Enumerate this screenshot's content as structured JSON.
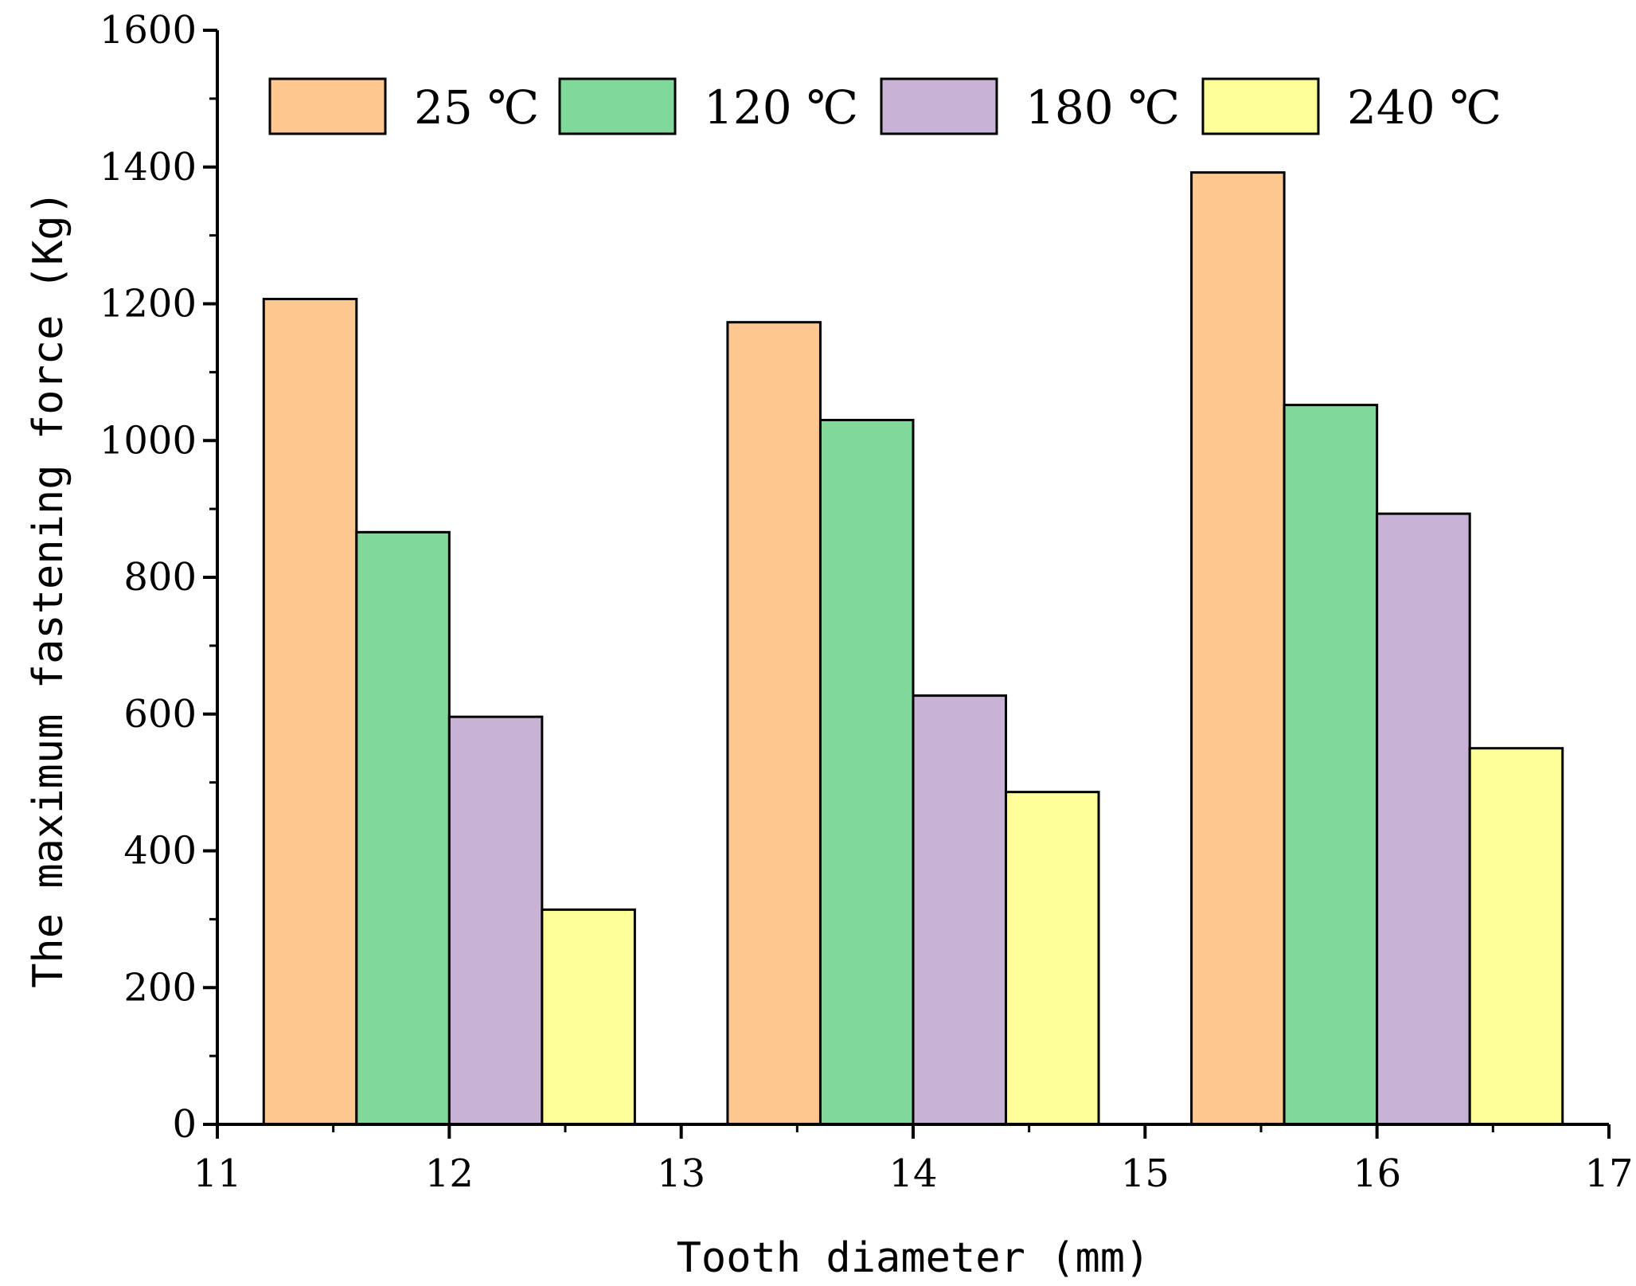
{
  "chart_data": {
    "type": "bar",
    "title": "",
    "xlabel": "Tooth diameter (mm)",
    "ylabel": "The maximum fastening force (Kg)",
    "xlim": [
      11,
      17
    ],
    "ylim": [
      0,
      1600
    ],
    "x_ticks": [
      "11",
      "12",
      "13",
      "14",
      "15",
      "16",
      "17"
    ],
    "y_ticks": [
      "0",
      "200",
      "400",
      "600",
      "800",
      "1000",
      "1200",
      "1400",
      "1600"
    ],
    "x": [
      12,
      14,
      16
    ],
    "bar_width": 0.4,
    "legend_position": "top",
    "series": [
      {
        "name": "25 ℃",
        "color": "#FFC891",
        "values": [
          1207,
          1173,
          1392
        ]
      },
      {
        "name": "120 ℃",
        "color": "#80D99A",
        "values": [
          866,
          1030,
          1052
        ]
      },
      {
        "name": "180 ℃",
        "color": "#C8B2D6",
        "values": [
          596,
          627,
          893
        ]
      },
      {
        "name": "240 ℃",
        "color": "#FFFF99",
        "values": [
          314,
          486,
          550
        ]
      }
    ]
  }
}
